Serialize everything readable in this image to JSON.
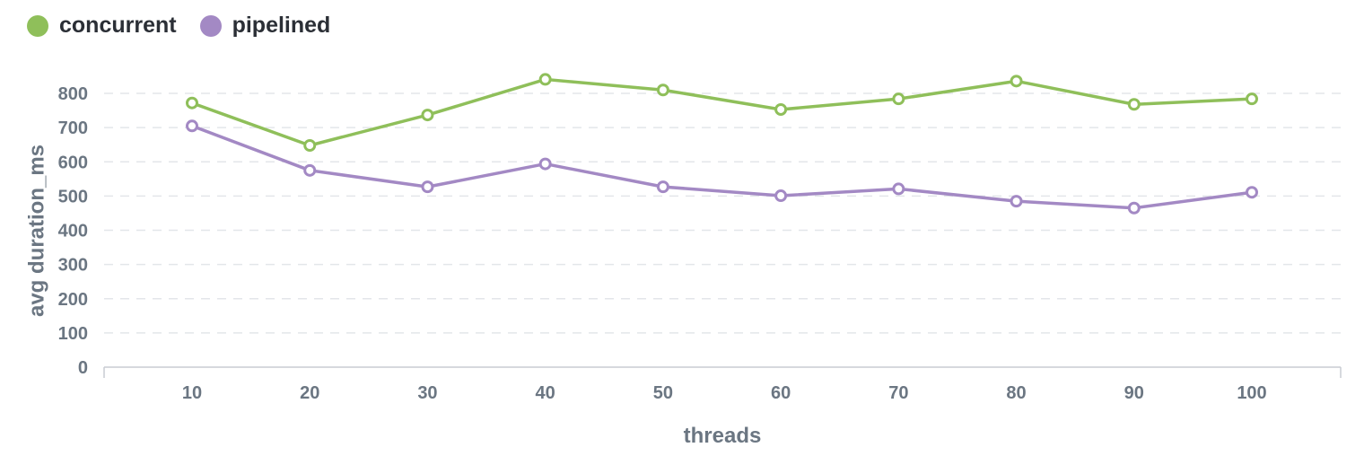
{
  "colors": {
    "concurrent": "#8fbf5a",
    "pipelined": "#a389c4",
    "grid": "#e3e6ea",
    "axis": "#c8ccd2",
    "text": "#6b7682"
  },
  "chart_data": {
    "type": "line",
    "xlabel": "threads",
    "ylabel": "avg duration_ms",
    "x": [
      10,
      20,
      30,
      40,
      50,
      60,
      70,
      80,
      90,
      100
    ],
    "yticks": [
      0,
      100,
      200,
      300,
      400,
      500,
      600,
      700,
      800
    ],
    "ylim": [
      0,
      850
    ],
    "grid": "horizontal dashed",
    "legend_position": "top-left",
    "series": [
      {
        "name": "concurrent",
        "values": [
          772,
          648,
          737,
          841,
          810,
          753,
          784,
          836,
          768,
          784
        ]
      },
      {
        "name": "pipelined",
        "values": [
          705,
          575,
          527,
          594,
          527,
          501,
          521,
          485,
          465,
          511
        ]
      }
    ]
  }
}
